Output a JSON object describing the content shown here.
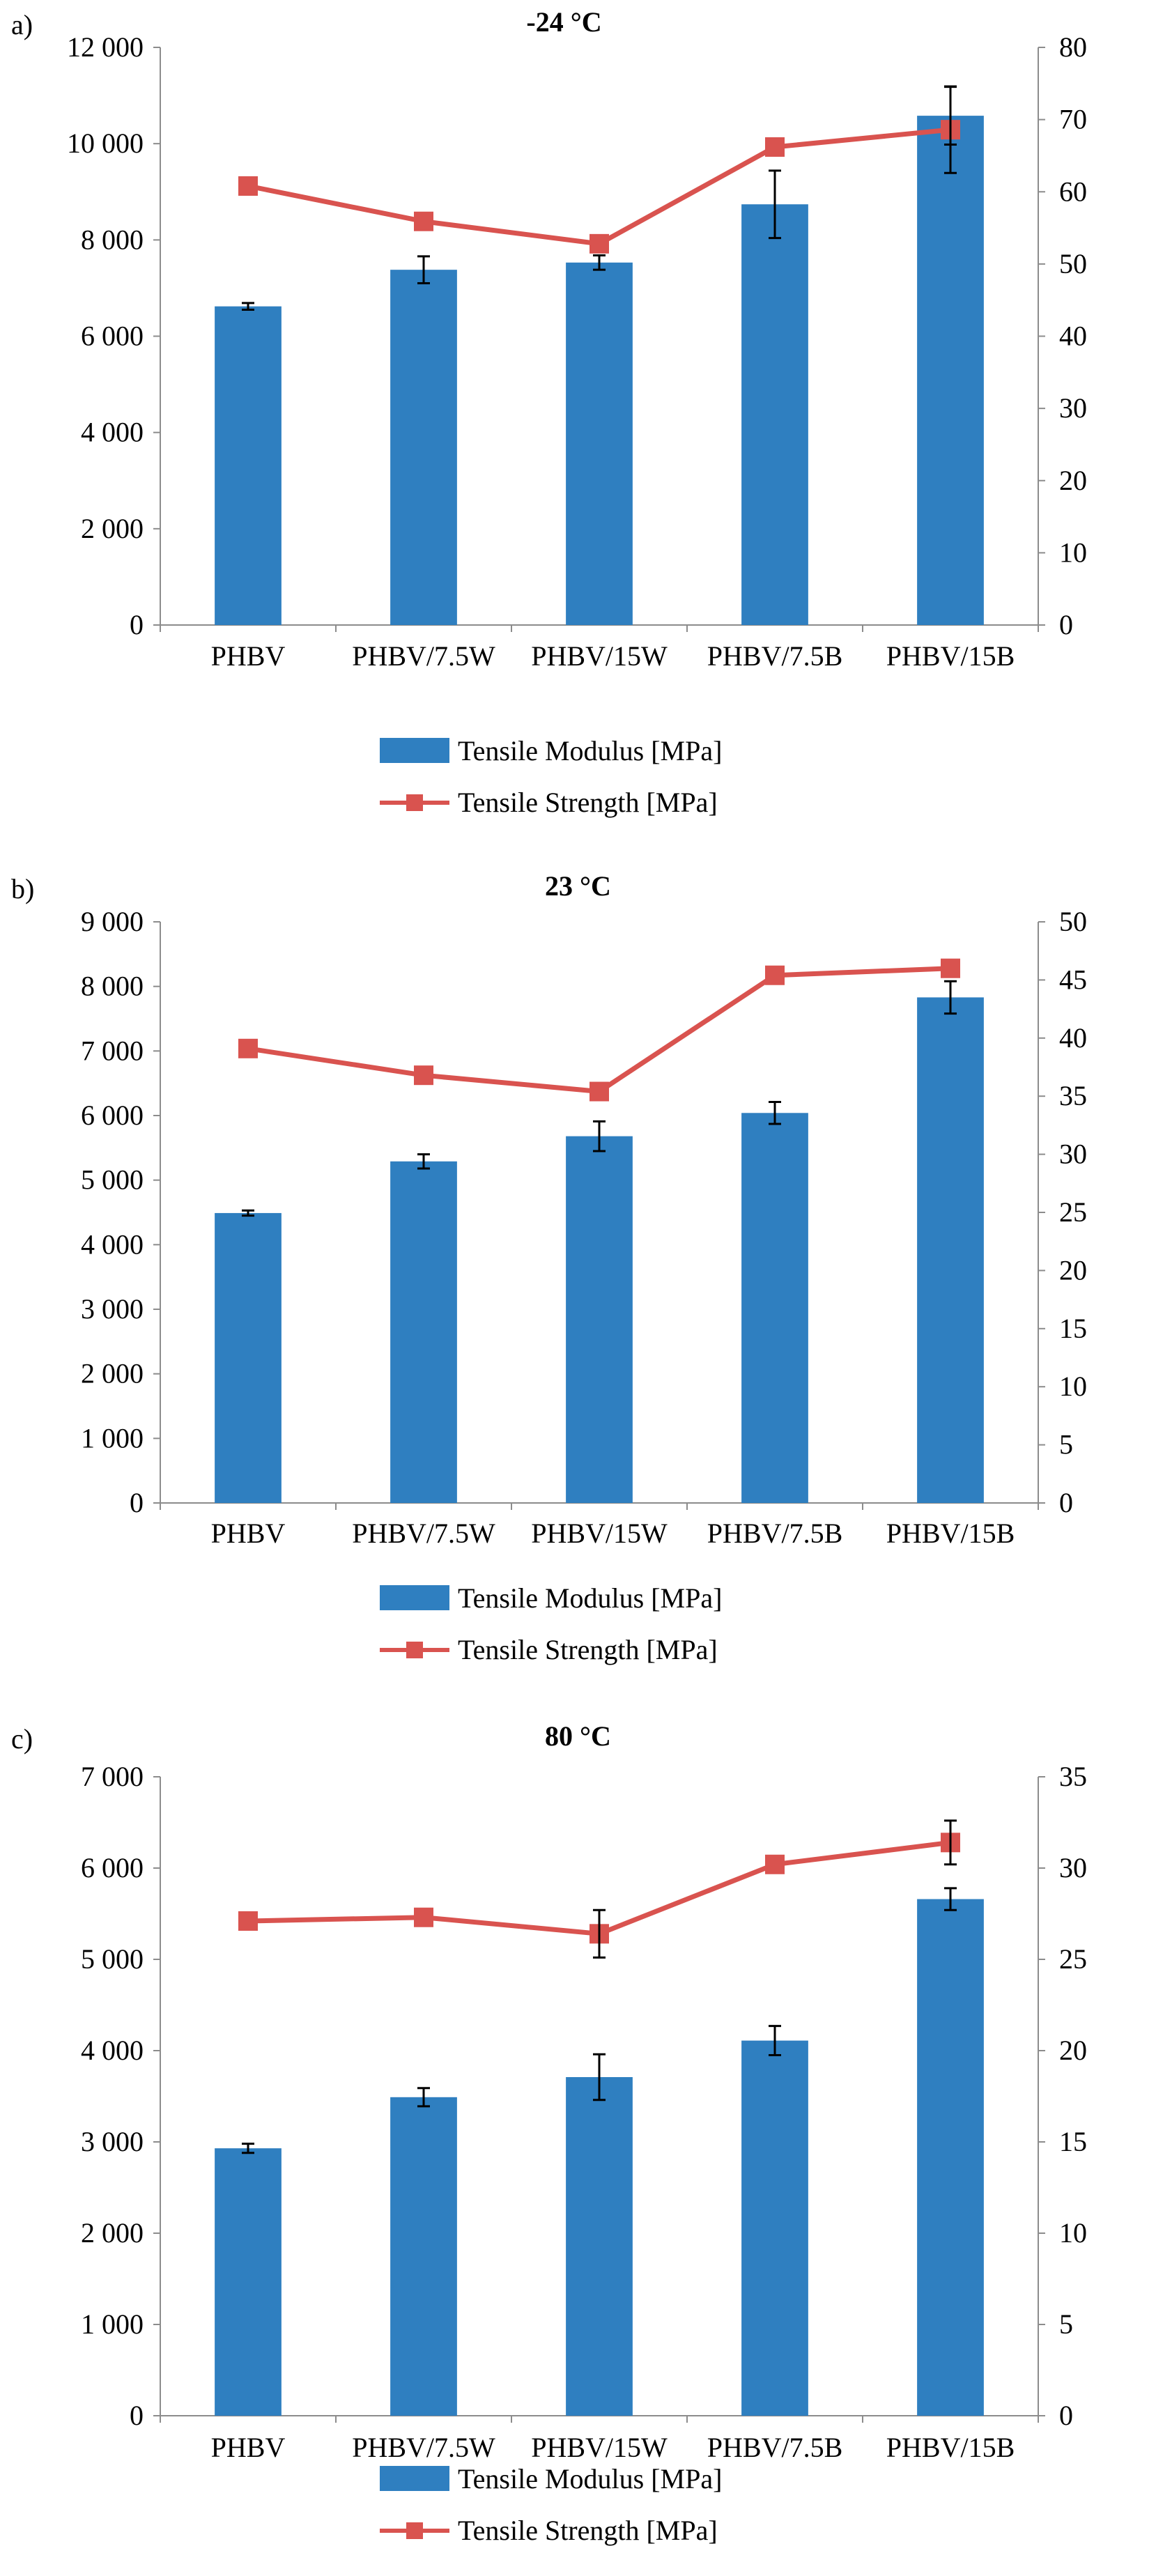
{
  "legend": {
    "modulus_label": "Tensile Modulus [MPa]",
    "strength_label": "Tensile Strength [MPa]"
  },
  "colors": {
    "bar": "#2f7fc0",
    "line": "#d9534f",
    "axis": "#8c8c8c"
  },
  "chart_data": [
    {
      "type": "bar",
      "panel_label": "a)",
      "title": "-24 °C",
      "categories": [
        "PHBV",
        "PHBV/7.5W",
        "PHBV/15W",
        "PHBV/7.5B",
        "PHBV/15B"
      ],
      "series": [
        {
          "name": "Tensile Modulus [MPa]",
          "type": "bar",
          "axis": "left",
          "values": [
            6620,
            7380,
            7530,
            8740,
            10580
          ],
          "errors": [
            70,
            280,
            150,
            700,
            600
          ]
        },
        {
          "name": "Tensile Strength [MPa]",
          "type": "line",
          "axis": "right",
          "values": [
            60.8,
            55.9,
            52.8,
            66.2,
            68.6
          ],
          "errors": [
            0,
            0,
            0,
            0,
            6
          ]
        }
      ],
      "ylim": [
        0,
        12000
      ],
      "yticks": [
        0,
        2000,
        4000,
        6000,
        8000,
        10000,
        12000
      ],
      "ytick_labels": [
        "0",
        "2 000",
        "4 000",
        "6 000",
        "8 000",
        "10 000",
        "12 000"
      ],
      "y2lim": [
        0,
        80
      ],
      "y2ticks": [
        0,
        10,
        20,
        30,
        40,
        50,
        60,
        70,
        80
      ],
      "y2tick_labels": [
        "0",
        "10",
        "20",
        "30",
        "40",
        "50",
        "60",
        "70",
        "80"
      ],
      "xlabel": "",
      "ylabel": "",
      "y2label": ""
    },
    {
      "type": "bar",
      "panel_label": "b)",
      "title": "23 °C",
      "categories": [
        "PHBV",
        "PHBV/7.5W",
        "PHBV/15W",
        "PHBV/7.5B",
        "PHBV/15B"
      ],
      "series": [
        {
          "name": "Tensile Modulus [MPa]",
          "type": "bar",
          "axis": "left",
          "values": [
            4490,
            5290,
            5680,
            6040,
            7830
          ],
          "errors": [
            40,
            110,
            230,
            170,
            250
          ]
        },
        {
          "name": "Tensile Strength [MPa]",
          "type": "line",
          "axis": "right",
          "values": [
            39.1,
            36.8,
            35.4,
            45.4,
            46.0
          ],
          "errors": [
            0,
            0,
            0,
            0,
            0
          ]
        }
      ],
      "ylim": [
        0,
        9000
      ],
      "yticks": [
        0,
        1000,
        2000,
        3000,
        4000,
        5000,
        6000,
        7000,
        8000,
        9000
      ],
      "ytick_labels": [
        "0",
        "1 000",
        "2 000",
        "3 000",
        "4 000",
        "5 000",
        "6 000",
        "7 000",
        "8 000",
        "9 000"
      ],
      "y2lim": [
        0,
        50
      ],
      "y2ticks": [
        0,
        5,
        10,
        15,
        20,
        25,
        30,
        35,
        40,
        45,
        50
      ],
      "y2tick_labels": [
        "0",
        "5",
        "10",
        "15",
        "20",
        "25",
        "30",
        "35",
        "40",
        "45",
        "50"
      ],
      "xlabel": "",
      "ylabel": "",
      "y2label": ""
    },
    {
      "type": "bar",
      "panel_label": "c)",
      "title": "80 °C",
      "categories": [
        "PHBV",
        "PHBV/7.5W",
        "PHBV/15W",
        "PHBV/7.5B",
        "PHBV/15B"
      ],
      "series": [
        {
          "name": "Tensile Modulus [MPa]",
          "type": "bar",
          "axis": "left",
          "values": [
            2930,
            3490,
            3710,
            4110,
            5660
          ],
          "errors": [
            50,
            100,
            250,
            160,
            120
          ]
        },
        {
          "name": "Tensile Strength [MPa]",
          "type": "line",
          "axis": "right",
          "values": [
            27.1,
            27.3,
            26.4,
            30.2,
            31.4
          ],
          "errors": [
            0,
            0,
            1.3,
            0,
            1.2
          ]
        }
      ],
      "ylim": [
        0,
        7000
      ],
      "yticks": [
        0,
        1000,
        2000,
        3000,
        4000,
        5000,
        6000,
        7000
      ],
      "ytick_labels": [
        "0",
        "1 000",
        "2 000",
        "3 000",
        "4 000",
        "5 000",
        "6 000",
        "7 000"
      ],
      "y2lim": [
        0,
        35
      ],
      "y2ticks": [
        0,
        5,
        10,
        15,
        20,
        25,
        30,
        35
      ],
      "y2tick_labels": [
        "0",
        "5",
        "10",
        "15",
        "20",
        "25",
        "30",
        "35"
      ],
      "xlabel": "",
      "ylabel": "",
      "y2label": ""
    }
  ]
}
